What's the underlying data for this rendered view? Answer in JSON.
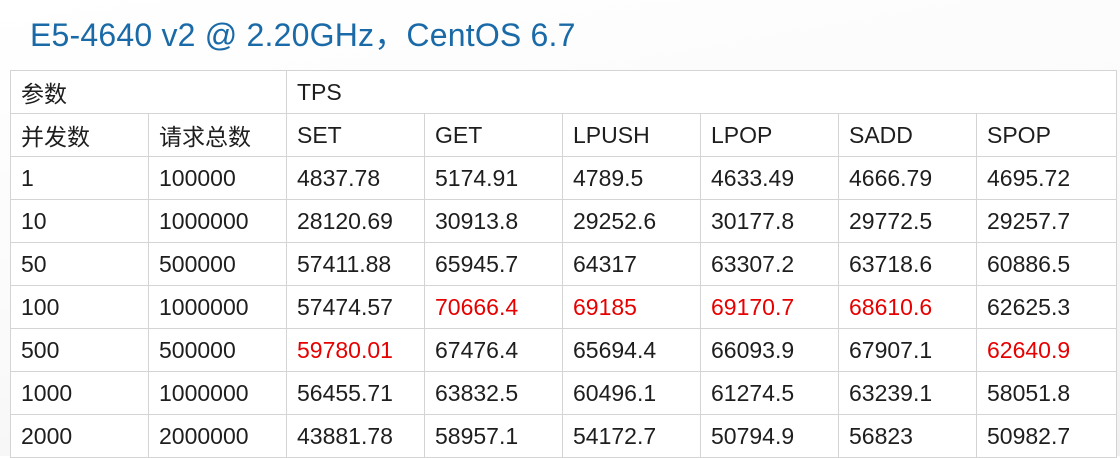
{
  "title": "E5-4640 v2 @ 2.20GHz，CentOS 6.7",
  "highlight_color": "#e60000",
  "table": {
    "header1": {
      "params_label": "参数",
      "tps_label": "TPS"
    },
    "header2": [
      "并发数",
      "请求总数",
      "SET",
      "GET",
      "LPUSH",
      "LPOP",
      "SADD",
      "SPOP"
    ],
    "rows": [
      {
        "cells": [
          "1",
          "100000",
          "4837.78",
          "5174.91",
          "4789.5",
          "4633.49",
          "4666.79",
          "4695.72"
        ],
        "highlight": []
      },
      {
        "cells": [
          "10",
          "1000000",
          "28120.69",
          "30913.8",
          "29252.6",
          "30177.8",
          "29772.5",
          "29257.7"
        ],
        "highlight": []
      },
      {
        "cells": [
          "50",
          "500000",
          "57411.88",
          "65945.7",
          "64317",
          "63307.2",
          "63718.6",
          "60886.5"
        ],
        "highlight": []
      },
      {
        "cells": [
          "100",
          "1000000",
          "57474.57",
          "70666.4",
          "69185",
          "69170.7",
          "68610.6",
          "62625.3"
        ],
        "highlight": [
          3,
          4,
          5,
          6
        ]
      },
      {
        "cells": [
          "500",
          "500000",
          "59780.01",
          "67476.4",
          "65694.4",
          "66093.9",
          "67907.1",
          "62640.9"
        ],
        "highlight": [
          2,
          7
        ]
      },
      {
        "cells": [
          "1000",
          "1000000",
          "56455.71",
          "63832.5",
          "60496.1",
          "61274.5",
          "63239.1",
          "58051.8"
        ],
        "highlight": []
      },
      {
        "cells": [
          "2000",
          "2000000",
          "43881.78",
          "58957.1",
          "54172.7",
          "50794.9",
          "56823",
          "50982.7"
        ],
        "highlight": []
      }
    ]
  }
}
